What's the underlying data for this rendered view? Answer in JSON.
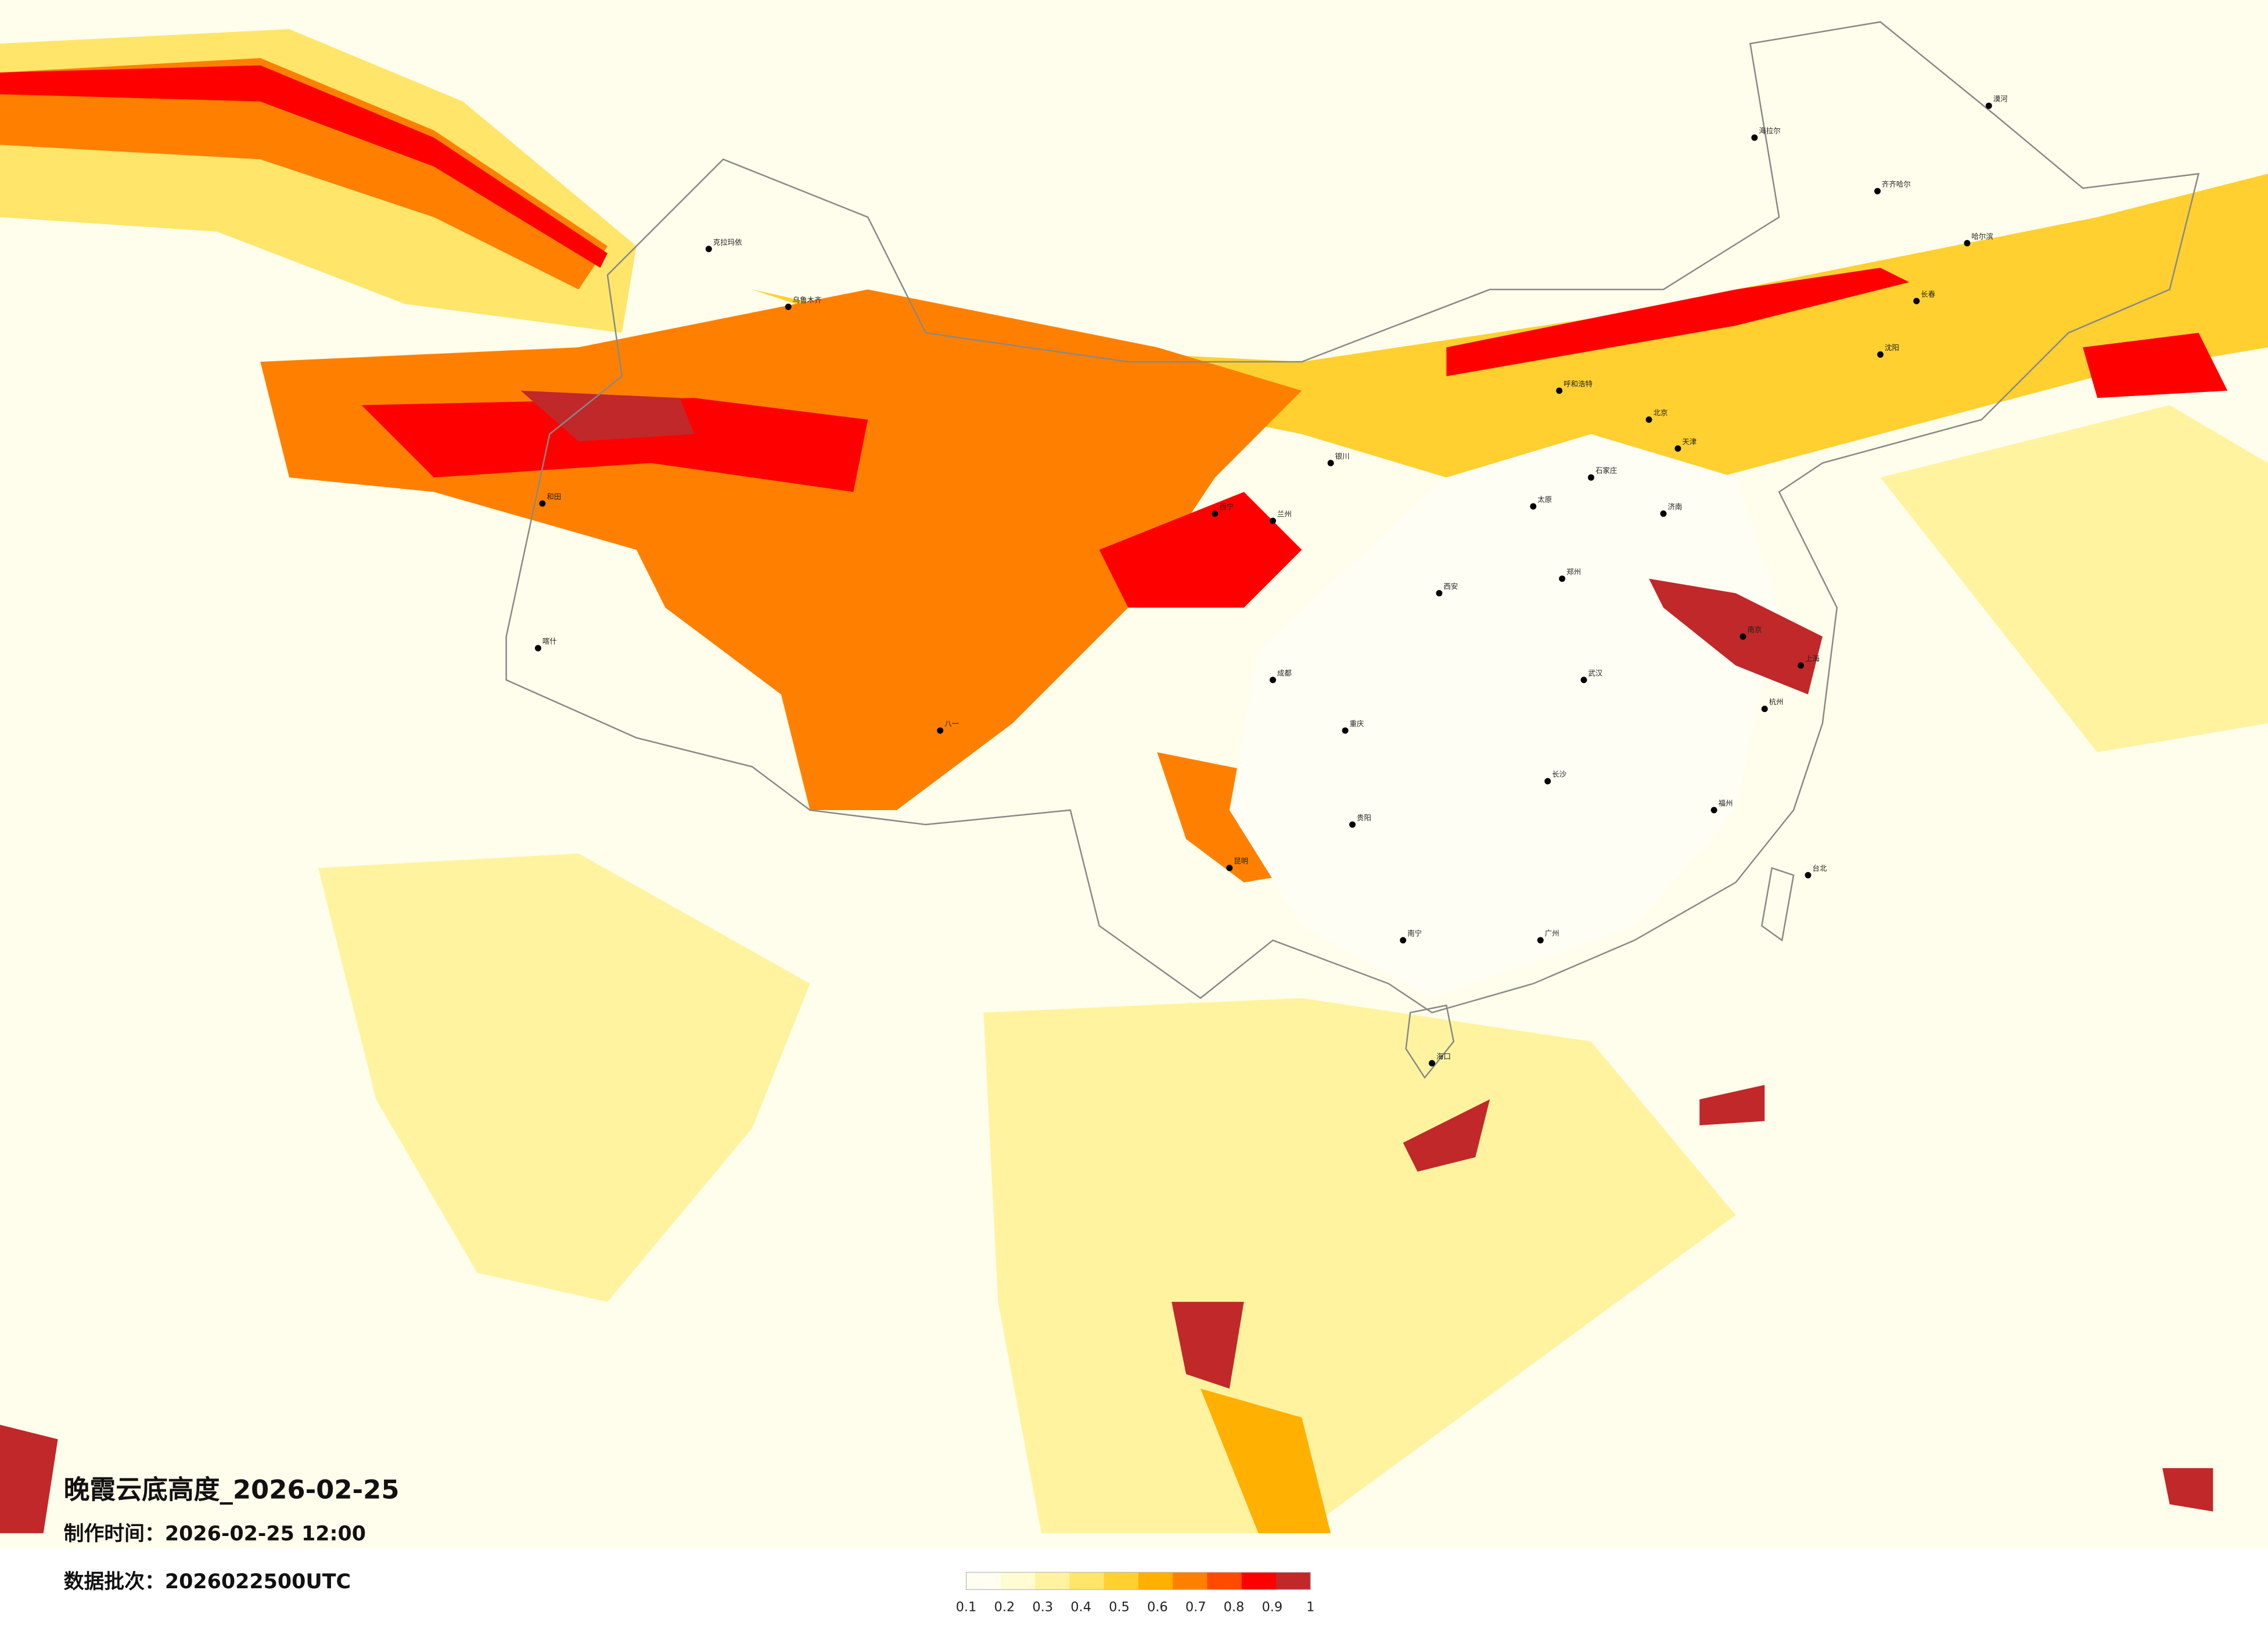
{
  "title": "晚霞云底高度_2026-02-25",
  "made_time": "制作时间：2026-02-25 12:00",
  "batch": "数据批次：2026022500UTC",
  "legend": {
    "ticks": [
      0.1,
      0.2,
      0.3,
      0.4,
      0.5,
      0.6,
      0.7,
      0.8,
      0.9,
      1
    ],
    "colors": [
      "#fffef0",
      "#fffbd2",
      "#fff3a0",
      "#ffe66a",
      "#ffd030",
      "#ffb000",
      "#ff8000",
      "#ff4a00",
      "#ff0000",
      "#c0282a"
    ]
  },
  "cities": [
    "漠河",
    "海拉尔",
    "齐齐哈尔",
    "哈尔滨",
    "长春",
    "沈阳",
    "北京",
    "天津",
    "呼和浩特",
    "石家庄",
    "太原",
    "济南",
    "郑州",
    "西安",
    "银川",
    "兰州",
    "西宁",
    "乌鲁木齐",
    "克拉玛依",
    "和田",
    "喀什",
    "八一",
    "成都",
    "重庆",
    "贵阳",
    "昆明",
    "南宁",
    "广州",
    "长沙",
    "武汉",
    "南京",
    "上海",
    "杭州",
    "福州",
    "台北",
    "海口"
  ]
}
